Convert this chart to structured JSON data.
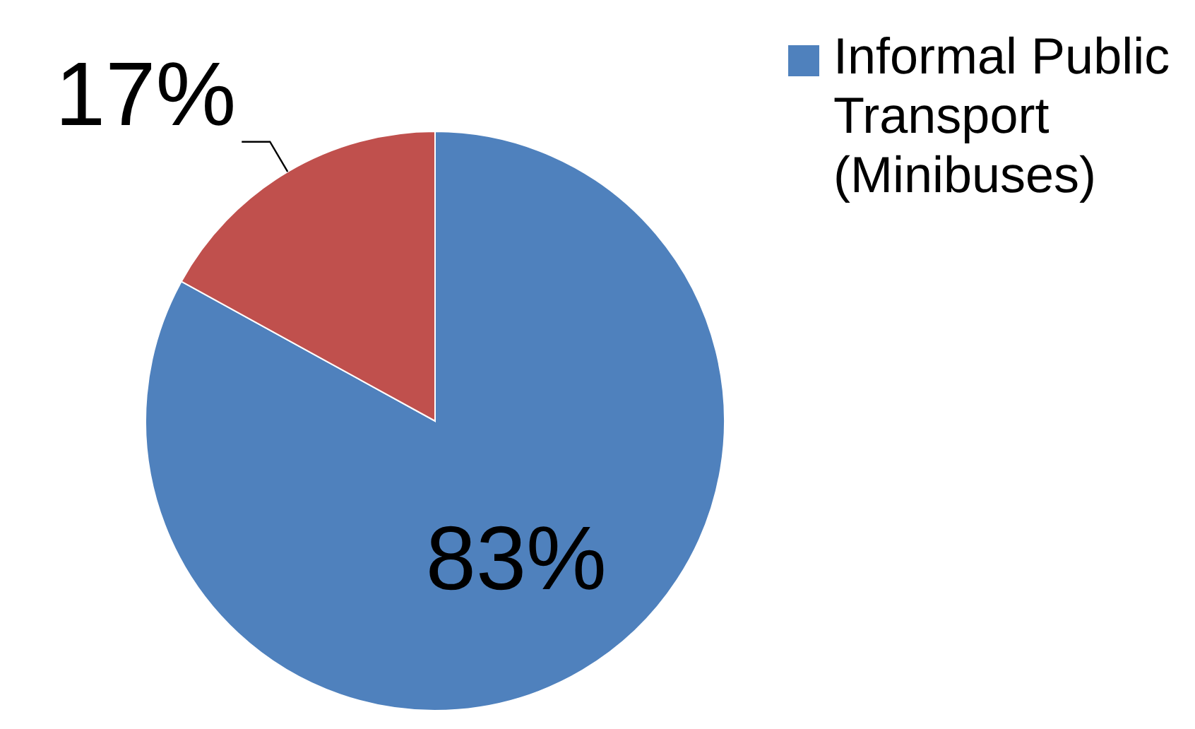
{
  "chart_data": {
    "type": "pie",
    "categories": [
      "Informal Public Transport (Minibuses)",
      null
    ],
    "values": [
      83,
      17
    ],
    "colors": [
      "#4f81bd",
      "#c0504d"
    ],
    "value_labels": [
      "83%",
      "17%"
    ],
    "legend": "top right"
  }
}
